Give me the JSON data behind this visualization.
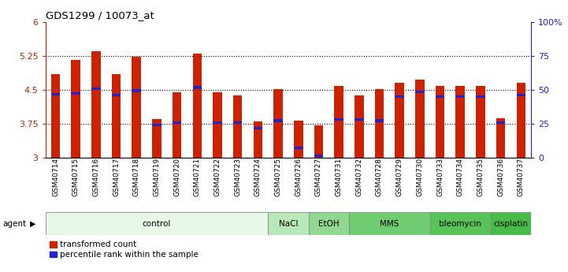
{
  "title": "GDS1299 / 10073_at",
  "samples": [
    "GSM40714",
    "GSM40715",
    "GSM40716",
    "GSM40717",
    "GSM40718",
    "GSM40719",
    "GSM40720",
    "GSM40721",
    "GSM40722",
    "GSM40723",
    "GSM40724",
    "GSM40725",
    "GSM40726",
    "GSM40727",
    "GSM40731",
    "GSM40732",
    "GSM40728",
    "GSM40729",
    "GSM40730",
    "GSM40733",
    "GSM40734",
    "GSM40735",
    "GSM40736",
    "GSM40737"
  ],
  "bar_values": [
    4.85,
    5.15,
    5.35,
    4.85,
    5.22,
    3.85,
    4.45,
    5.3,
    4.45,
    4.38,
    3.8,
    4.52,
    3.82,
    3.72,
    4.58,
    4.38,
    4.52,
    4.65,
    4.72,
    4.58,
    4.58,
    4.58,
    3.88,
    4.65
  ],
  "blue_values": [
    4.4,
    4.42,
    4.52,
    4.38,
    4.48,
    3.72,
    3.78,
    4.55,
    3.78,
    3.78,
    3.65,
    3.82,
    3.22,
    3.05,
    3.85,
    3.85,
    3.82,
    4.35,
    4.45,
    4.35,
    4.35,
    4.35,
    3.78,
    4.38
  ],
  "bar_color": "#cc2200",
  "blue_color": "#2222cc",
  "ymin": 3.0,
  "ymax": 6.0,
  "yticks": [
    3.0,
    3.75,
    4.5,
    5.25,
    6.0
  ],
  "ytick_labels": [
    "3",
    "3.75",
    "4.5",
    "5.25",
    "6"
  ],
  "right_yticks": [
    0,
    25,
    50,
    75,
    100
  ],
  "right_ytick_labels": [
    "0",
    "25",
    "50",
    "75",
    "100%"
  ],
  "agent_groups": [
    {
      "label": "control",
      "start": 0,
      "end": 11,
      "color": "#e8f8e8"
    },
    {
      "label": "NaCl",
      "start": 11,
      "end": 13,
      "color": "#b8e8b8"
    },
    {
      "label": "EtOH",
      "start": 13,
      "end": 15,
      "color": "#90d890"
    },
    {
      "label": "MMS",
      "start": 15,
      "end": 19,
      "color": "#70cc70"
    },
    {
      "label": "bleomycin",
      "start": 19,
      "end": 22,
      "color": "#58c458"
    },
    {
      "label": "cisplatin",
      "start": 22,
      "end": 24,
      "color": "#48bc48"
    }
  ],
  "legend_red": "transformed count",
  "legend_blue": "percentile rank within the sample",
  "bar_width": 0.45
}
